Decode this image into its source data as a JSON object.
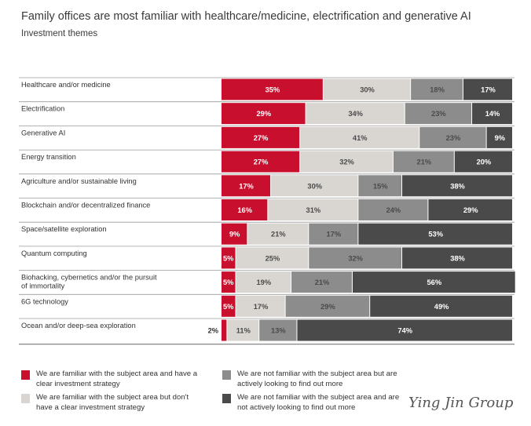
{
  "title": "Family offices are most familiar with healthcare/medicine, electrification and generative AI",
  "subtitle": "Investment themes",
  "watermark": "Ying Jin Group",
  "colors": {
    "familiar_strategy": "#c8102e",
    "familiar_no_strategy": "#d9d6d2",
    "not_familiar_looking": "#8c8c8c",
    "not_familiar_not_looking": "#4a4a4a"
  },
  "chart_data": {
    "type": "bar",
    "orientation": "horizontal",
    "stacked": true,
    "categories": [
      "Healthcare and/or medicine",
      "Electrification",
      "Generative AI",
      "Energy transition",
      "Agriculture and/or sustainable living",
      "Blockchain and/or decentralized finance",
      "Space/satellite exploration",
      "Quantum computing",
      "Biohacking, cybernetics and/or the pursuit of immortality",
      "6G technology",
      "Ocean and/or deep-sea exploration"
    ],
    "series": [
      {
        "name": "We are familiar with the subject area and have a clear investment strategy",
        "values": [
          35,
          29,
          27,
          27,
          17,
          16,
          9,
          5,
          5,
          5,
          2
        ]
      },
      {
        "name": "We are familiar with the subject area but don't have a clear investment strategy",
        "values": [
          30,
          34,
          41,
          32,
          30,
          31,
          21,
          25,
          19,
          17,
          11
        ]
      },
      {
        "name": "We are not familiar with the subject area but are actively looking to find out more",
        "values": [
          18,
          23,
          23,
          21,
          15,
          24,
          17,
          32,
          21,
          29,
          13
        ]
      },
      {
        "name": "We are not familiar with the subject area and are not actively looking to find out more",
        "values": [
          17,
          14,
          9,
          20,
          38,
          29,
          53,
          38,
          56,
          49,
          74
        ]
      }
    ],
    "value_suffix": "%",
    "xlim": [
      0,
      100
    ],
    "legend_position": "bottom"
  }
}
